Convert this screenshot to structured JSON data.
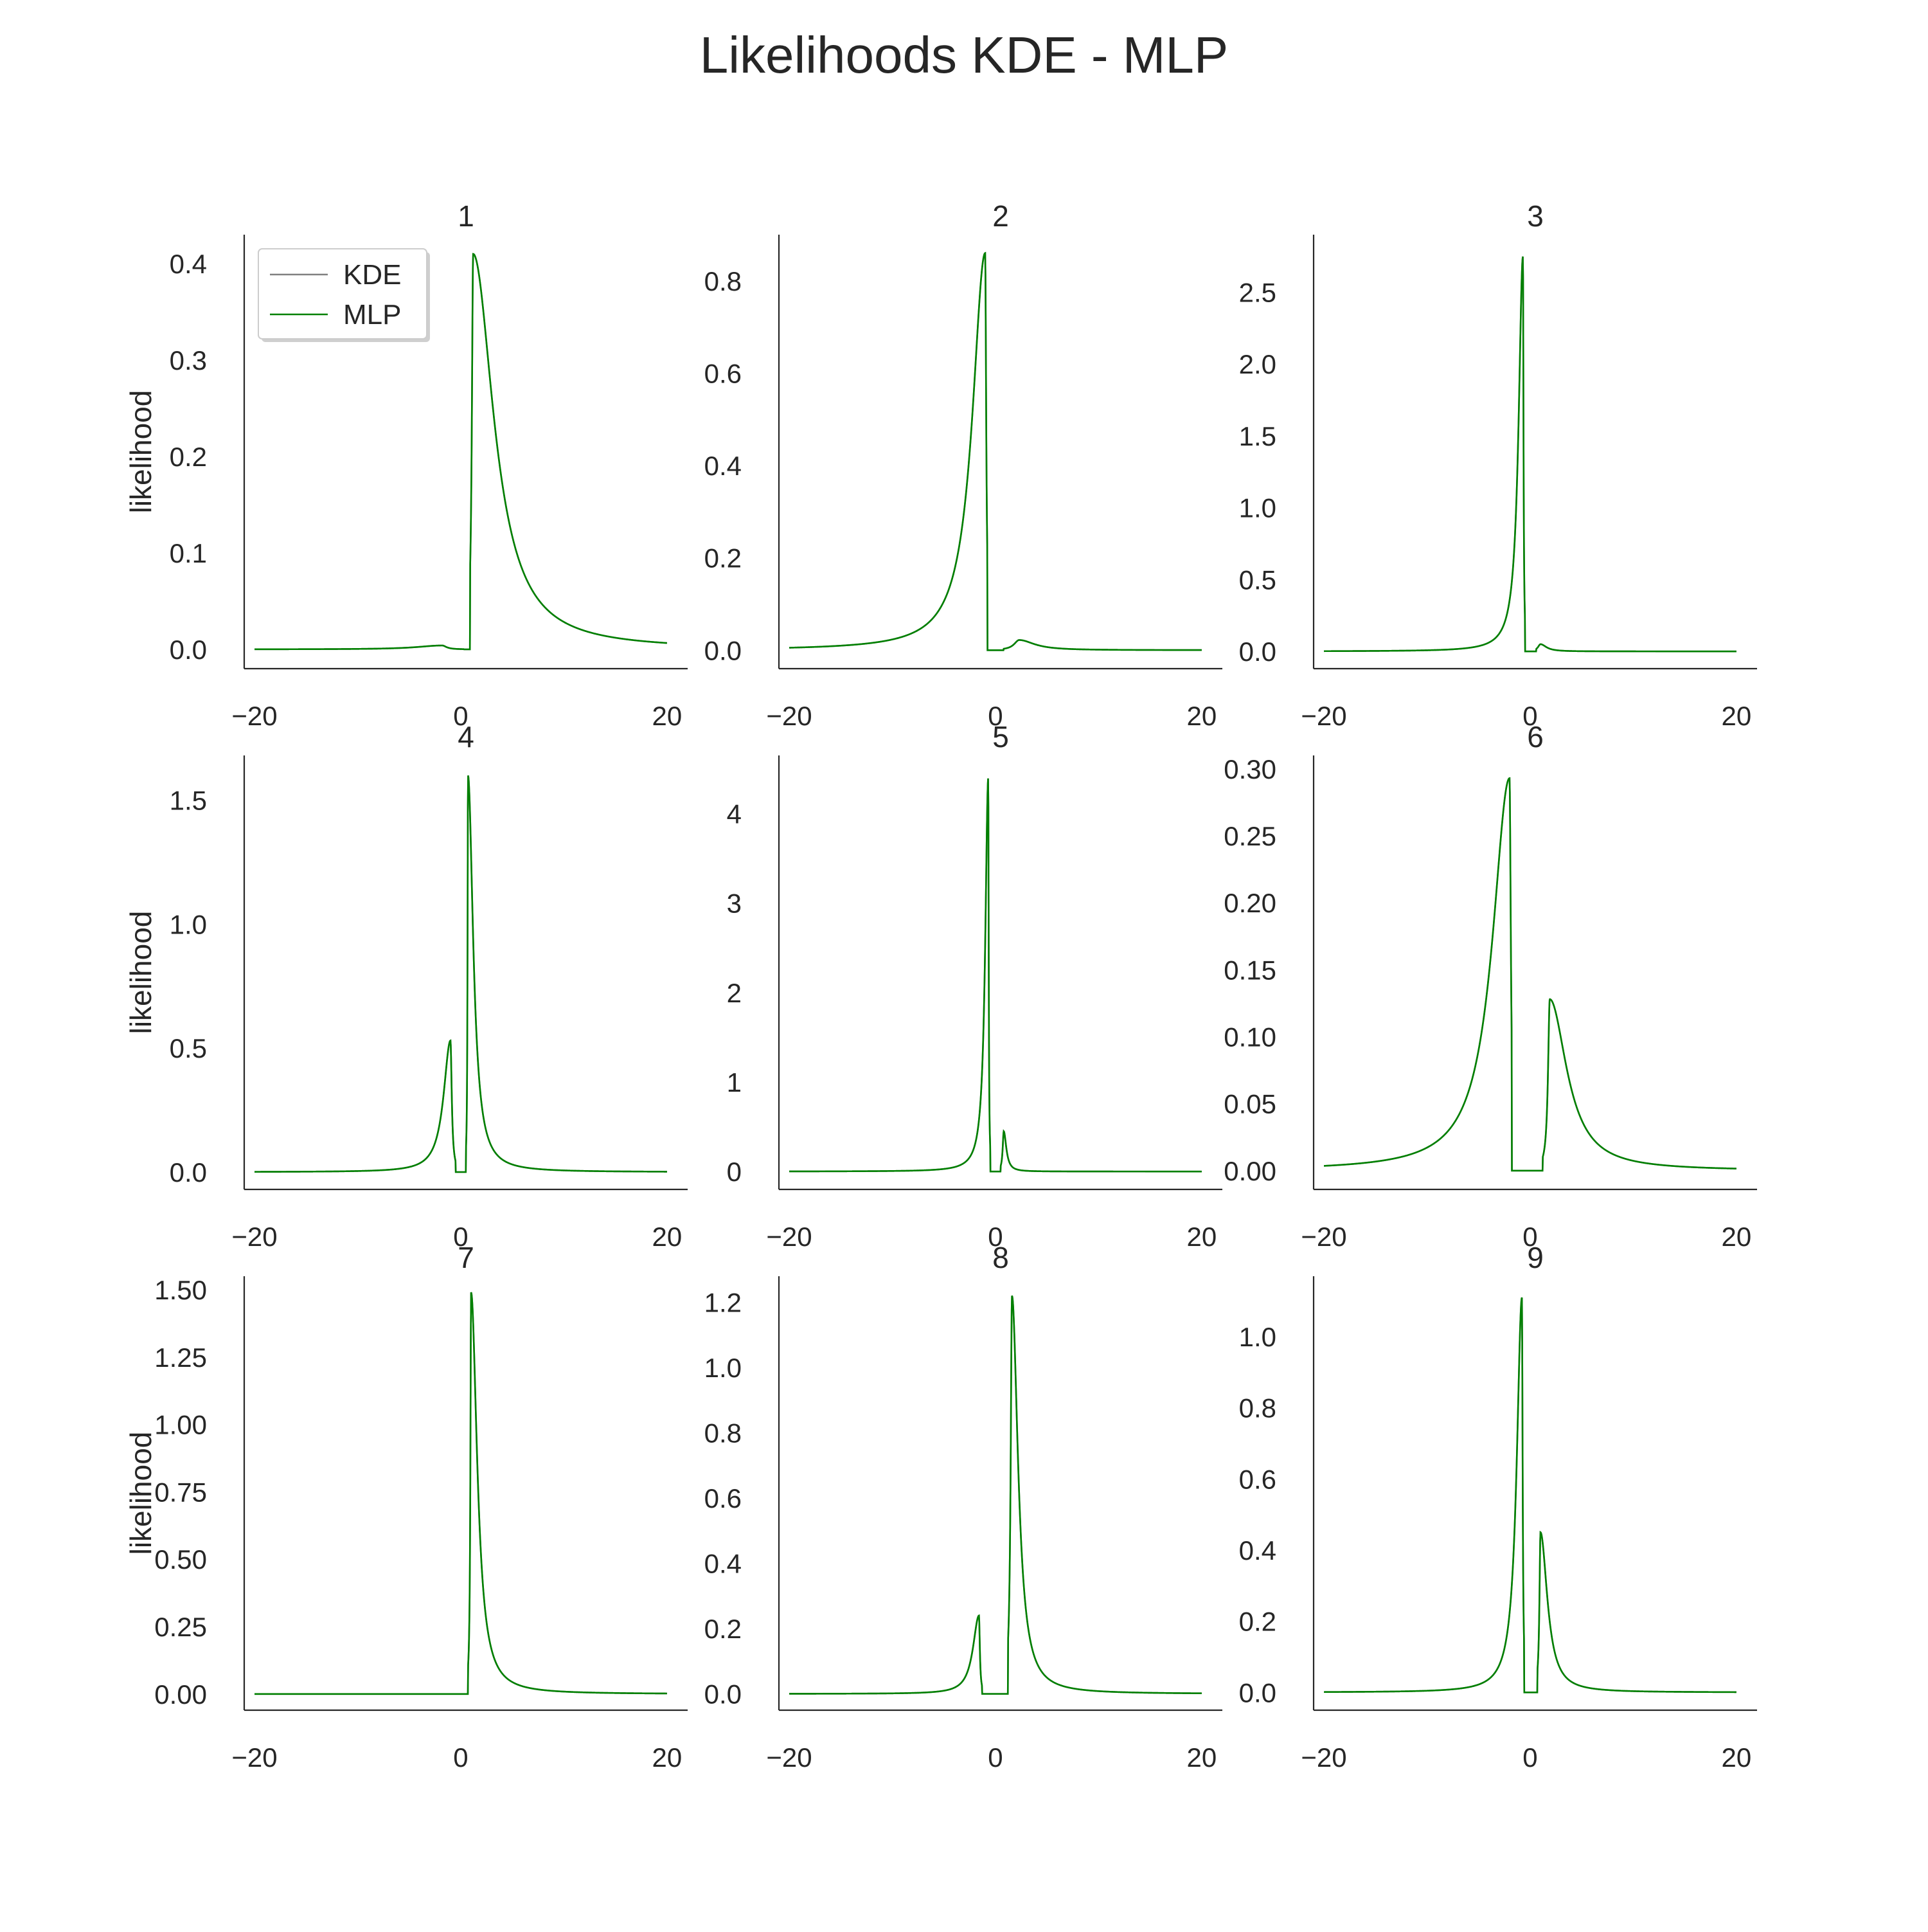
{
  "figure": {
    "title": "Likelihoods KDE - MLP"
  },
  "colors": {
    "kde": "#808080",
    "mlp": "#008000",
    "axis": "#262626",
    "text": "#262626"
  },
  "legend": {
    "placement": "upper-left",
    "subplot_index": 0,
    "entries": [
      {
        "label": "KDE",
        "color": "#808080"
      },
      {
        "label": "MLP",
        "color": "#008000"
      }
    ]
  },
  "chart_data": [
    {
      "type": "line",
      "title": "1",
      "ylabel": "likelihood",
      "xlim": [
        -21,
        22
      ],
      "ylim": [
        -0.02,
        0.43
      ],
      "xticks": [
        -20,
        0,
        20
      ],
      "yticks": [
        0.0,
        0.1,
        0.2,
        0.3,
        0.4
      ],
      "ytick_labels": [
        "0.0",
        "0.1",
        "0.2",
        "0.3",
        "0.4"
      ],
      "grid": false,
      "peaks": [
        {
          "mu": -1.8,
          "amp": 0.004,
          "wl": 3.0,
          "wr": 0.5,
          "lo": -20,
          "hi": 0.3
        },
        {
          "mu": 1.2,
          "amp": 0.41,
          "wl": 0.15,
          "wr": 2.4,
          "lo": 0.9,
          "hi": 20
        }
      ]
    },
    {
      "type": "line",
      "title": "2",
      "ylabel": "",
      "xlim": [
        -21,
        22
      ],
      "ylim": [
        -0.04,
        0.9
      ],
      "xticks": [
        -20,
        0,
        20
      ],
      "yticks": [
        0.0,
        0.2,
        0.4,
        0.6,
        0.8
      ],
      "ytick_labels": [
        "0.0",
        "0.2",
        "0.4",
        "0.6",
        "0.8"
      ],
      "grid": false,
      "peaks": [
        {
          "mu": -1.0,
          "amp": 0.86,
          "wl": 1.5,
          "wr": 0.12,
          "lo": -20,
          "hi": -0.8
        },
        {
          "mu": 2.3,
          "amp": 0.022,
          "wl": 0.6,
          "wr": 1.8,
          "lo": 0.8,
          "hi": 20
        }
      ]
    },
    {
      "type": "line",
      "title": "3",
      "ylabel": "",
      "xlim": [
        -21,
        22
      ],
      "ylim": [
        -0.12,
        2.9
      ],
      "xticks": [
        -20,
        0,
        20
      ],
      "yticks": [
        0.0,
        0.5,
        1.0,
        1.5,
        2.0,
        2.5
      ],
      "ytick_labels": [
        "0.0",
        "0.5",
        "1.0",
        "1.5",
        "2.0",
        "2.5"
      ],
      "grid": false,
      "peaks": [
        {
          "mu": -0.7,
          "amp": 2.75,
          "wl": 0.5,
          "wr": 0.06,
          "lo": -20,
          "hi": -0.5
        },
        {
          "mu": 1.0,
          "amp": 0.05,
          "wl": 0.3,
          "wr": 0.7,
          "lo": 0.6,
          "hi": 20
        }
      ]
    },
    {
      "type": "line",
      "title": "4",
      "ylabel": "likelihood",
      "xlim": [
        -21,
        22
      ],
      "ylim": [
        -0.07,
        1.68
      ],
      "xticks": [
        -20,
        0,
        20
      ],
      "yticks": [
        0.0,
        0.5,
        1.0,
        1.5
      ],
      "ytick_labels": [
        "0.0",
        "0.5",
        "1.0",
        "1.5"
      ],
      "grid": false,
      "peaks": [
        {
          "mu": -1.0,
          "amp": 0.53,
          "wl": 0.8,
          "wr": 0.15,
          "lo": -20,
          "hi": -0.5
        },
        {
          "mu": 0.7,
          "amp": 1.6,
          "wl": 0.05,
          "wr": 0.6,
          "lo": 0.5,
          "hi": 20
        }
      ]
    },
    {
      "type": "line",
      "title": "5",
      "ylabel": "",
      "xlim": [
        -21,
        22
      ],
      "ylim": [
        -0.2,
        4.65
      ],
      "xticks": [
        -20,
        0,
        20
      ],
      "yticks": [
        0,
        1,
        2,
        3,
        4
      ],
      "ytick_labels": [
        "0",
        "1",
        "2",
        "3",
        "4"
      ],
      "grid": false,
      "peaks": [
        {
          "mu": -0.7,
          "amp": 4.4,
          "wl": 0.35,
          "wr": 0.05,
          "lo": -20,
          "hi": -0.5
        },
        {
          "mu": 0.8,
          "amp": 0.45,
          "wl": 0.12,
          "wr": 0.3,
          "lo": 0.5,
          "hi": 20
        }
      ]
    },
    {
      "type": "line",
      "title": "6",
      "ylabel": "",
      "xlim": [
        -21,
        22
      ],
      "ylim": [
        -0.014,
        0.31
      ],
      "xticks": [
        -20,
        0,
        20
      ],
      "yticks": [
        0.0,
        0.05,
        0.1,
        0.15,
        0.2,
        0.25,
        0.3
      ],
      "ytick_labels": [
        "0.00",
        "0.05",
        "0.10",
        "0.15",
        "0.20",
        "0.25",
        "0.30"
      ],
      "grid": false,
      "peaks": [
        {
          "mu": -2.0,
          "amp": 0.293,
          "wl": 2.0,
          "wr": 0.15,
          "lo": -20,
          "hi": -1.8
        },
        {
          "mu": 1.9,
          "amp": 0.128,
          "wl": 0.2,
          "wr": 2.0,
          "lo": 1.2,
          "hi": 20
        }
      ]
    },
    {
      "type": "line",
      "title": "7",
      "ylabel": "likelihood",
      "xlim": [
        -21,
        22
      ],
      "ylim": [
        -0.06,
        1.55
      ],
      "xticks": [
        -20,
        0,
        20
      ],
      "yticks": [
        0.0,
        0.25,
        0.5,
        0.75,
        1.0,
        1.25,
        1.5
      ],
      "ytick_labels": [
        "0.00",
        "0.25",
        "0.50",
        "0.75",
        "1.00",
        "1.25",
        "1.50"
      ],
      "grid": false,
      "peaks": [
        {
          "mu": 1.0,
          "amp": 1.49,
          "wl": 0.08,
          "wr": 0.7,
          "lo": 0.7,
          "hi": 20
        }
      ]
    },
    {
      "type": "line",
      "title": "8",
      "ylabel": "",
      "xlim": [
        -21,
        22
      ],
      "ylim": [
        -0.05,
        1.28
      ],
      "xticks": [
        -20,
        0,
        20
      ],
      "yticks": [
        0.0,
        0.2,
        0.4,
        0.6,
        0.8,
        1.0,
        1.2
      ],
      "ytick_labels": [
        "0.0",
        "0.2",
        "0.4",
        "0.6",
        "0.8",
        "1.0",
        "1.2"
      ],
      "grid": false,
      "peaks": [
        {
          "mu": -1.6,
          "amp": 0.24,
          "wl": 0.7,
          "wr": 0.1,
          "lo": -20,
          "hi": -1.3
        },
        {
          "mu": 1.6,
          "amp": 1.22,
          "wl": 0.15,
          "wr": 0.7,
          "lo": 1.2,
          "hi": 20
        }
      ]
    },
    {
      "type": "line",
      "title": "9",
      "ylabel": "",
      "xlim": [
        -21,
        22
      ],
      "ylim": [
        -0.05,
        1.17
      ],
      "xticks": [
        -20,
        0,
        20
      ],
      "yticks": [
        0.0,
        0.2,
        0.4,
        0.6,
        0.8,
        1.0
      ],
      "ytick_labels": [
        "0.0",
        "0.2",
        "0.4",
        "0.6",
        "0.8",
        "1.0"
      ],
      "grid": false,
      "peaks": [
        {
          "mu": -0.8,
          "amp": 1.11,
          "wl": 0.6,
          "wr": 0.08,
          "lo": -20,
          "hi": -0.6
        },
        {
          "mu": 1.0,
          "amp": 0.45,
          "wl": 0.12,
          "wr": 0.8,
          "lo": 0.7,
          "hi": 20
        }
      ]
    }
  ]
}
